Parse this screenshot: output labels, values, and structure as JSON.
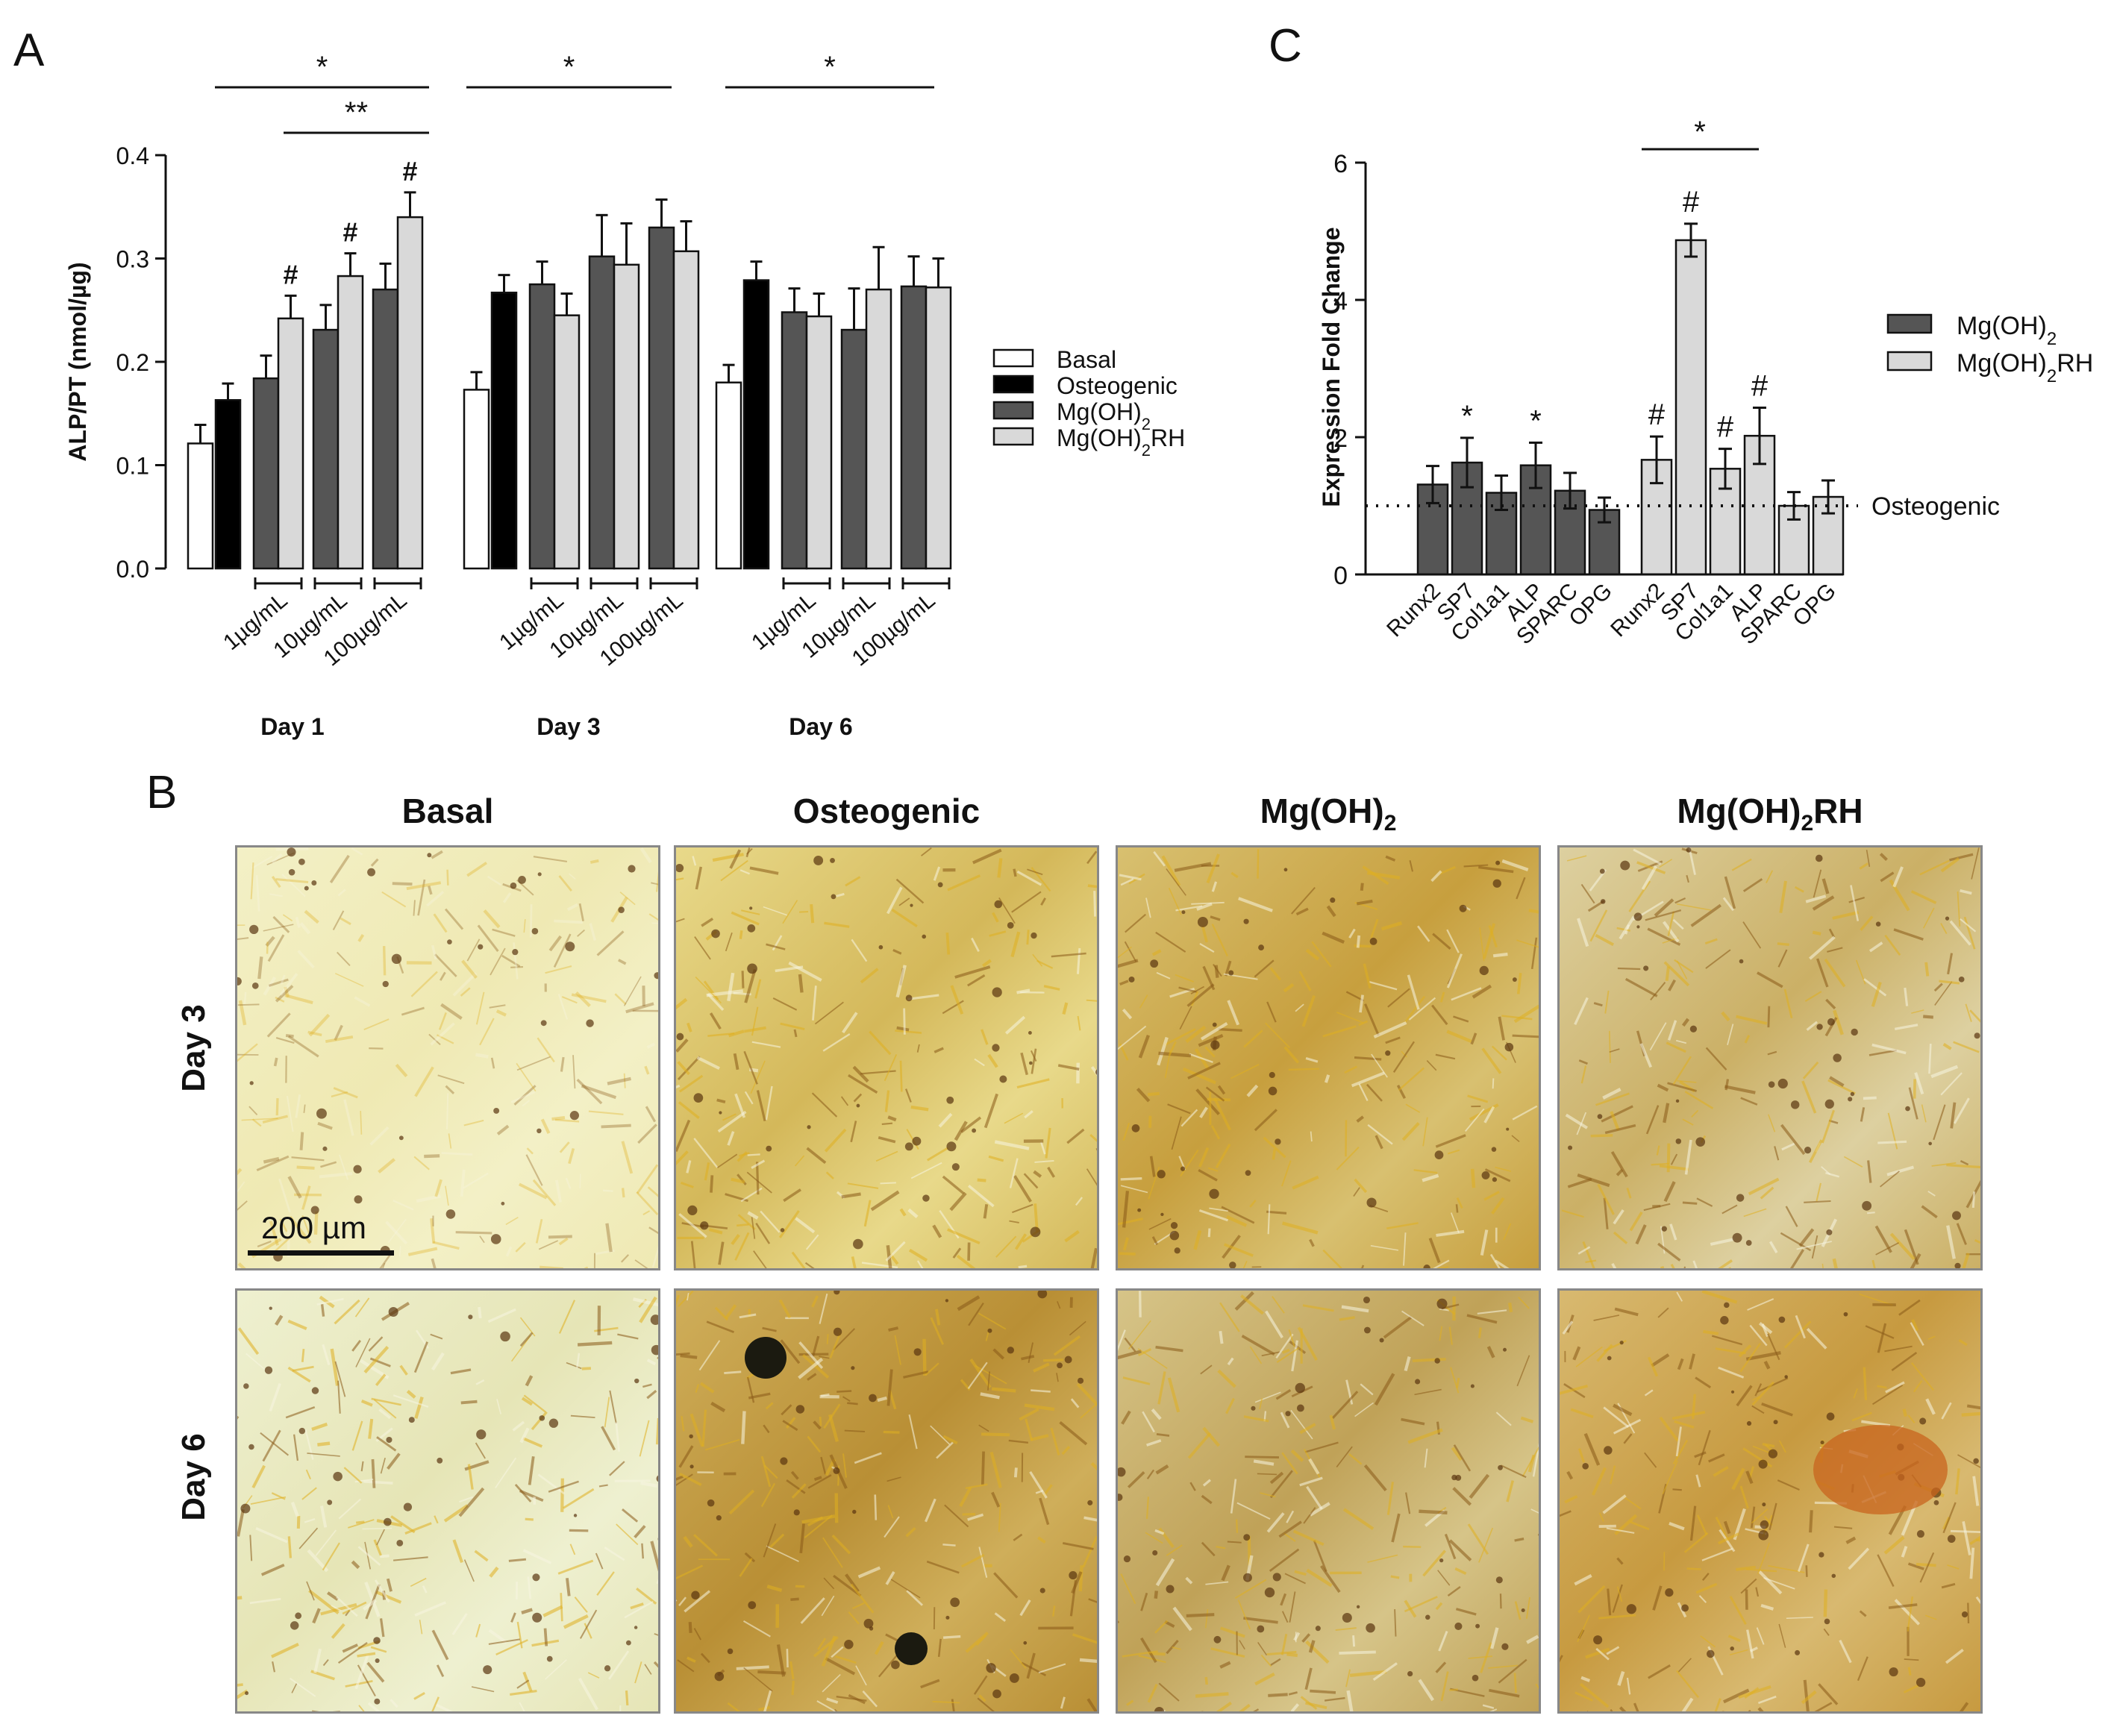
{
  "panels": {
    "a": "A",
    "b": "B",
    "c": "C"
  },
  "colors": {
    "basal": "#ffffff",
    "osteogenic": "#000000",
    "mgoh2": "#555555",
    "mgoh2rh": "#d9d9d9"
  },
  "chart_data": [
    {
      "type": "bar",
      "panel": "A",
      "ylabel": "ALP/PT (nmol/µg)",
      "ylim": [
        0,
        0.4
      ],
      "yticks": [
        "0.0",
        "0.1",
        "0.2",
        "0.3",
        "0.4"
      ],
      "concentration_labels": [
        "1µg/mL",
        "10µg/mL",
        "100µg/mL"
      ],
      "days": [
        "Day 1",
        "Day 3",
        "Day 6"
      ],
      "legend": [
        "Basal",
        "Osteogenic",
        "Mg(OH)2",
        "Mg(OH)2RH"
      ],
      "groups": [
        {
          "day": "Day 1",
          "basal": {
            "value": 0.121,
            "error": 0.018
          },
          "osteogenic": {
            "value": 0.163,
            "error": 0.016
          },
          "mgoh2": [
            {
              "value": 0.184,
              "error": 0.022
            },
            {
              "value": 0.231,
              "error": 0.024
            },
            {
              "value": 0.27,
              "error": 0.025
            }
          ],
          "mgoh2rh": [
            {
              "value": 0.242,
              "error": 0.022
            },
            {
              "value": 0.283,
              "error": 0.022
            },
            {
              "value": 0.34,
              "error": 0.024
            }
          ],
          "rh_marks": [
            "#",
            "#",
            "#"
          ]
        },
        {
          "day": "Day 3",
          "basal": {
            "value": 0.173,
            "error": 0.017
          },
          "osteogenic": {
            "value": 0.267,
            "error": 0.017
          },
          "mgoh2": [
            {
              "value": 0.275,
              "error": 0.022
            },
            {
              "value": 0.302,
              "error": 0.04
            },
            {
              "value": 0.33,
              "error": 0.027
            }
          ],
          "mgoh2rh": [
            {
              "value": 0.245,
              "error": 0.021
            },
            {
              "value": 0.294,
              "error": 0.04
            },
            {
              "value": 0.307,
              "error": 0.029
            }
          ],
          "rh_marks": [
            "",
            "",
            ""
          ]
        },
        {
          "day": "Day 6",
          "basal": {
            "value": 0.18,
            "error": 0.017
          },
          "osteogenic": {
            "value": 0.279,
            "error": 0.018
          },
          "mgoh2": [
            {
              "value": 0.248,
              "error": 0.023
            },
            {
              "value": 0.231,
              "error": 0.04
            },
            {
              "value": 0.273,
              "error": 0.029
            }
          ],
          "mgoh2rh": [
            {
              "value": 0.244,
              "error": 0.022
            },
            {
              "value": 0.27,
              "error": 0.041
            },
            {
              "value": 0.272,
              "error": 0.028
            }
          ],
          "rh_marks": [
            "",
            "",
            ""
          ]
        }
      ],
      "significance": [
        "*",
        "**",
        "*",
        "*"
      ]
    },
    {
      "type": "bar",
      "panel": "C",
      "ylabel": "Expression Fold Change",
      "ylim": [
        0,
        6
      ],
      "yticks": [
        "0",
        "2",
        "4",
        "6"
      ],
      "categories": [
        "Runx2",
        "SP7",
        "Col1a1",
        "ALP",
        "SPARC",
        "OPG"
      ],
      "legend": [
        "Mg(OH)2",
        "Mg(OH)2RH"
      ],
      "reference_line": {
        "value": 1,
        "label": "Osteogenic"
      },
      "series": [
        {
          "name": "Mg(OH)2",
          "values": [
            1.31,
            1.63,
            1.19,
            1.59,
            1.22,
            0.94
          ],
          "errors": [
            0.27,
            0.36,
            0.25,
            0.33,
            0.26,
            0.18
          ],
          "marks": [
            "",
            "*",
            "",
            "*",
            "",
            ""
          ]
        },
        {
          "name": "Mg(OH)2RH",
          "values": [
            1.67,
            4.87,
            1.54,
            2.02,
            1.0,
            1.13
          ],
          "errors": [
            0.34,
            0.24,
            0.29,
            0.41,
            0.2,
            0.24
          ],
          "marks": [
            "#",
            "#",
            "#",
            "#",
            "",
            ""
          ]
        }
      ],
      "significance": "*"
    }
  ],
  "micrographs": {
    "columns": [
      "Basal",
      "Osteogenic",
      "Mg(OH)",
      "Mg(OH)"
    ],
    "subscript": "2",
    "rh_suffix": "RH",
    "rows": [
      "Day 3",
      "Day 6"
    ],
    "scale_bar": "200 µm"
  }
}
